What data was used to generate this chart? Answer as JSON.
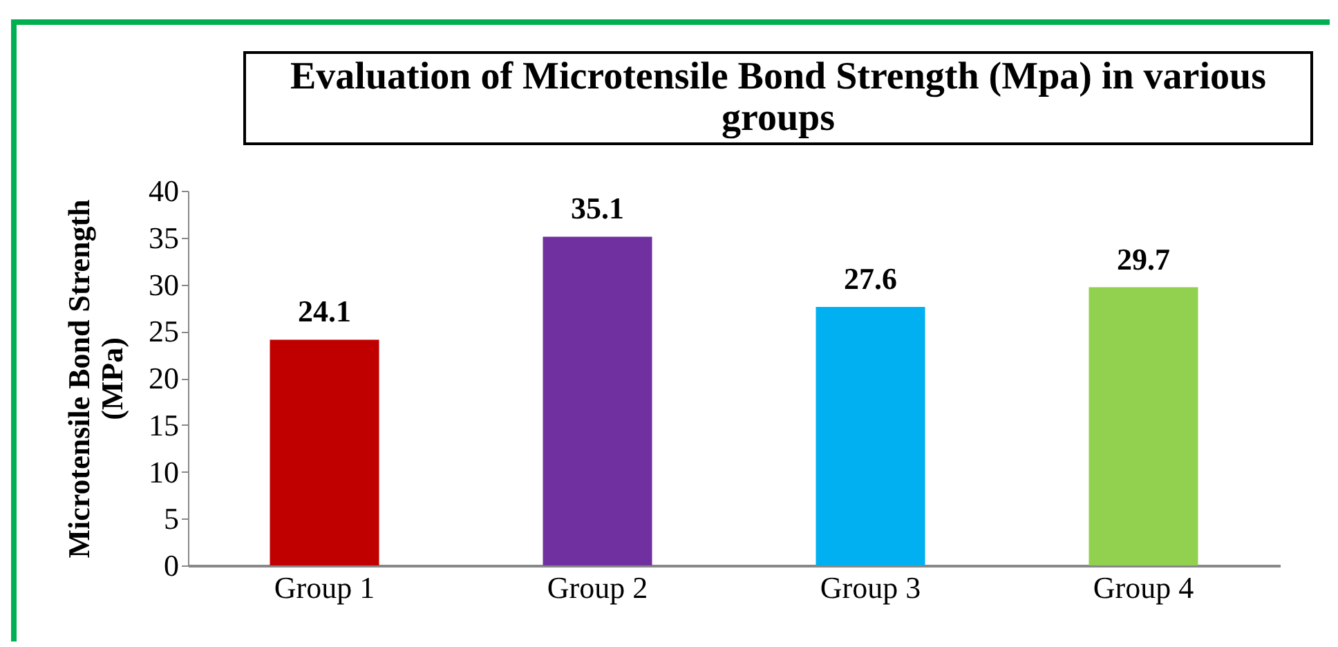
{
  "chart_data": {
    "type": "bar",
    "title": "Evaluation of Microtensile Bond Strength (Mpa) in various groups",
    "ylabel": "Microtensile Bond Strength (MPa)",
    "categories": [
      "Group 1",
      "Group 2",
      "Group 3",
      "Group 4"
    ],
    "values": [
      24.1,
      35.1,
      27.6,
      29.7
    ],
    "colors": [
      "#c00000",
      "#7030a0",
      "#00b0f0",
      "#92d050"
    ],
    "ylim": [
      0,
      40
    ],
    "yticks": [
      0,
      5,
      10,
      15,
      20,
      25,
      30,
      35,
      40
    ],
    "grid": false,
    "data_labels": true
  }
}
